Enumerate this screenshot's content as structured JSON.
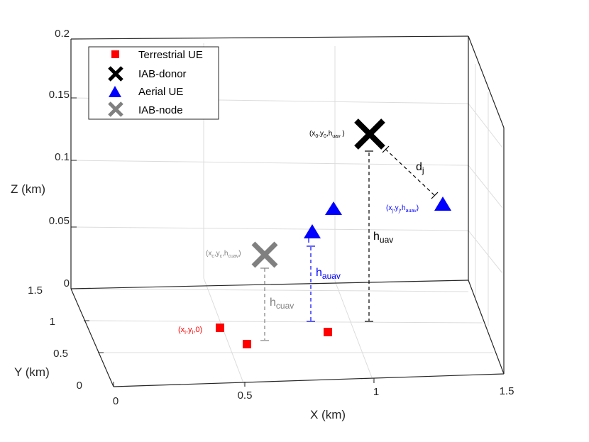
{
  "chart_data": {
    "type": "scatter",
    "x_label": "X (km)",
    "y_label": "Y (km)",
    "z_label": "Z (km)",
    "x_ticks": [
      "0",
      "0.5",
      "1",
      "1.5"
    ],
    "y_ticks": [
      "0",
      "0.5",
      "1",
      "1.5"
    ],
    "z_ticks": [
      "0",
      "0.05",
      "0.1",
      "0.15",
      "0.2"
    ],
    "xlim": [
      0,
      1.5
    ],
    "ylim": [
      0,
      1.5
    ],
    "zlim": [
      0,
      0.2
    ],
    "grid": true,
    "legend_position": "top-left",
    "legend": [
      {
        "label": "Terrestrial UE",
        "marker": "square",
        "color": "#ff0000"
      },
      {
        "label": "IAB-donor",
        "marker": "x",
        "color": "#000000"
      },
      {
        "label": "Aerial UE",
        "marker": "triangle",
        "color": "#0000ff"
      },
      {
        "label": "IAB-node",
        "marker": "x",
        "color": "#808080"
      }
    ],
    "series": [
      {
        "name": "Terrestrial UE",
        "points": [
          {
            "x": 0.46,
            "y": 1.0,
            "z": 0
          },
          {
            "x": 0.52,
            "y": 0.6,
            "z": 0
          },
          {
            "x": 0.8,
            "y": 1.0,
            "z": 0
          }
        ]
      },
      {
        "name": "IAB-donor",
        "points": [
          {
            "x": 1.0,
            "y": 0.8,
            "z": 0.15
          }
        ]
      },
      {
        "name": "Aerial UE",
        "points": [
          {
            "x": 0.8,
            "y": 0.8,
            "z": 0.07
          },
          {
            "x": 0.75,
            "y": 0.8,
            "z": 0.06
          },
          {
            "x": 1.35,
            "y": 0.8,
            "z": 0.11
          }
        ]
      },
      {
        "name": "IAB-node",
        "points": [
          {
            "x": 0.6,
            "y": 0.6,
            "z": 0.06
          }
        ]
      }
    ],
    "annotations": {
      "donor": {
        "pre": "(x",
        "s1": "0",
        "mid": ",y",
        "s2": "0",
        "mid2": ",h",
        "s3": "uav",
        "post": " )",
        "color": "#000000"
      },
      "node": {
        "pre": "(x",
        "s1": "c",
        "mid": ",y",
        "s2": "c",
        "mid2": ",h",
        "s3": "cuav",
        "post": ")",
        "color": "#808080"
      },
      "aerial": {
        "pre": "(x",
        "s1": "j",
        "mid": ",y",
        "s2": "j",
        "mid2": ",h",
        "s3": "auav",
        "post": ")",
        "color": "#0000ff"
      },
      "terrestrial": {
        "pre": "(x",
        "s1": "i",
        "mid": ",y",
        "s2": "i",
        "mid2": ",0",
        "s3": "",
        "post": ")",
        "color": "#ff0000"
      },
      "h_uav": {
        "base": "h",
        "sub": "uav",
        "color": "#000000"
      },
      "h_auav": {
        "base": "h",
        "sub": "auav",
        "color": "#0000ff"
      },
      "h_cuav": {
        "base": "h",
        "sub": "cuav",
        "color": "#808080"
      },
      "d_j": {
        "base": "d",
        "sub": "j",
        "color": "#000000"
      }
    }
  }
}
